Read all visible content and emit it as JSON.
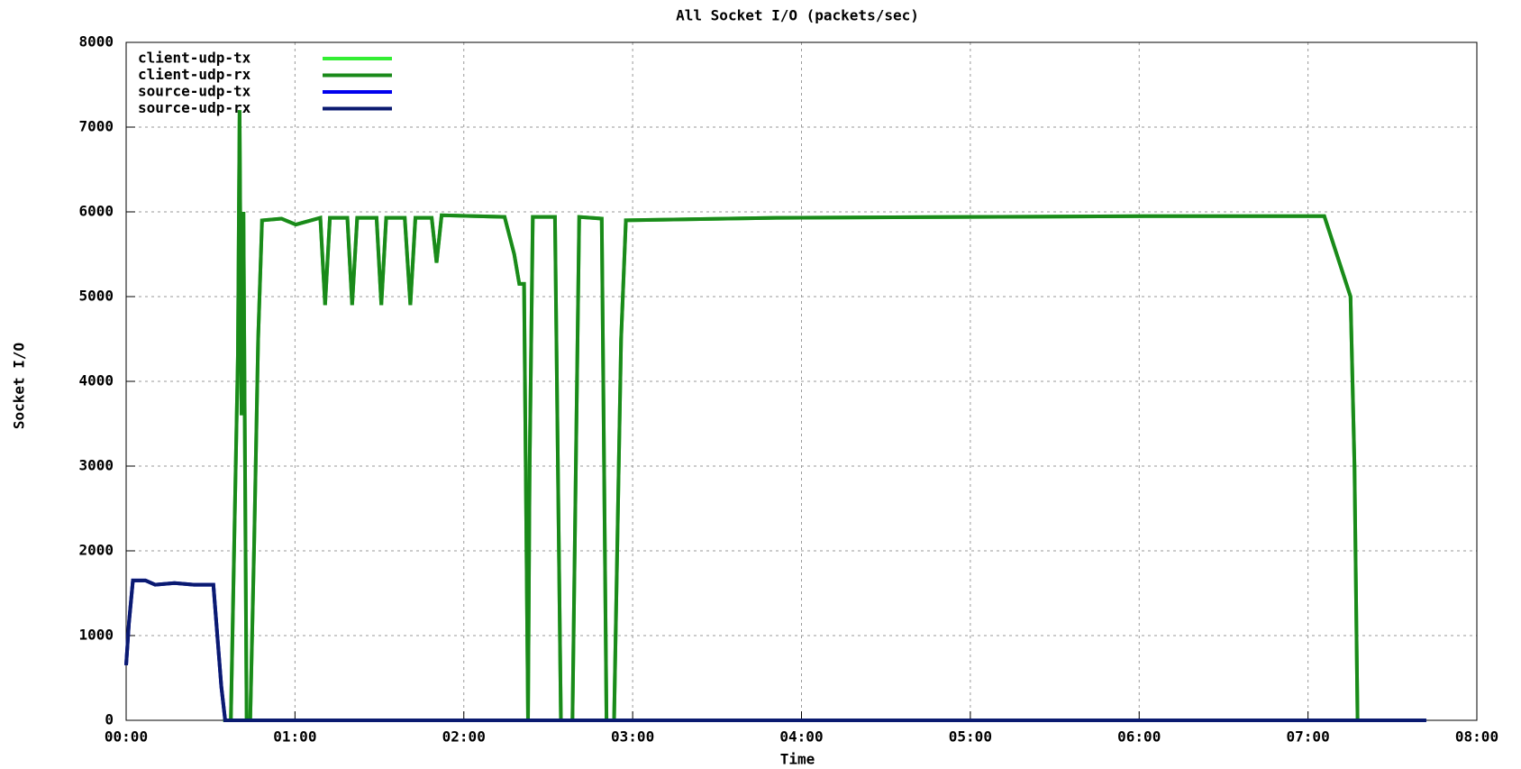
{
  "chart_data": {
    "type": "line",
    "title": "All Socket I/O (packets/sec)",
    "xlabel": "Time",
    "ylabel": "Socket I/O",
    "xlim": [
      0,
      480
    ],
    "xticks": [
      {
        "value": 0,
        "label": "00:00"
      },
      {
        "value": 60,
        "label": "01:00"
      },
      {
        "value": 120,
        "label": "02:00"
      },
      {
        "value": 180,
        "label": "03:00"
      },
      {
        "value": 240,
        "label": "04:00"
      },
      {
        "value": 300,
        "label": "05:00"
      },
      {
        "value": 360,
        "label": "06:00"
      },
      {
        "value": 420,
        "label": "07:00"
      },
      {
        "value": 480,
        "label": "08:00"
      }
    ],
    "ylim": [
      0,
      8000
    ],
    "yticks": [
      0,
      1000,
      2000,
      3000,
      4000,
      5000,
      6000,
      7000,
      8000
    ],
    "grid": true,
    "legend": "top-left",
    "series": [
      {
        "name": "client-udp-tx",
        "color": "#33ee33",
        "x": [
          34.5,
          37.2,
          38.6,
          39.7,
          40.3,
          41.0,
          41.7,
          42.8,
          44.1,
          45.5,
          46.9,
          48.3,
          55.2,
          60.3,
          69.0,
          70.7,
          72.4,
          78.6,
          80.3,
          82.1,
          89.0,
          90.7,
          92.4,
          99.0,
          101.0,
          102.8,
          108.6,
          110.3,
          112.1,
          134.5,
          137.9,
          139.7,
          141.4,
          142.8,
          143.4,
          144.5,
          152.4,
          154.5,
          158.6,
          161.0,
          169.0,
          170.7,
          173.4,
          175.9,
          177.6,
          231,
          300,
          369,
          425.8,
          435.1,
          436.5,
          437.6,
          462
        ],
        "values": [
          0,
          0,
          2400,
          4300,
          7200,
          3600,
          6000,
          0,
          0,
          2100,
          4500,
          5900,
          5920,
          5850,
          5930,
          4900,
          5930,
          5930,
          4900,
          5930,
          5930,
          4900,
          5930,
          5930,
          4900,
          5930,
          5930,
          5400,
          5960,
          5940,
          5500,
          5150,
          5150,
          0,
          3000,
          5940,
          5940,
          0,
          0,
          5940,
          5920,
          0,
          0,
          4500,
          5900,
          5930,
          5940,
          5950,
          5950,
          5000,
          3000,
          0,
          0
        ]
      },
      {
        "name": "client-udp-rx",
        "color": "#1a8a1a",
        "x": [
          34.5,
          37.2,
          38.6,
          39.7,
          40.3,
          41.0,
          41.7,
          42.8,
          44.1,
          45.5,
          46.9,
          48.3,
          55.2,
          60.3,
          69.0,
          70.7,
          72.4,
          78.6,
          80.3,
          82.1,
          89.0,
          90.7,
          92.4,
          99.0,
          101.0,
          102.8,
          108.6,
          110.3,
          112.1,
          134.5,
          137.9,
          139.7,
          141.4,
          142.8,
          143.4,
          144.5,
          152.4,
          154.5,
          158.6,
          161.0,
          169.0,
          170.7,
          173.4,
          175.9,
          177.6,
          231,
          300,
          369,
          425.8,
          435.1,
          436.5,
          437.6,
          462
        ],
        "values": [
          0,
          0,
          2400,
          4300,
          7200,
          3600,
          6000,
          0,
          0,
          2100,
          4500,
          5900,
          5920,
          5850,
          5930,
          4900,
          5930,
          5930,
          4900,
          5930,
          5930,
          4900,
          5930,
          5930,
          4900,
          5930,
          5930,
          5400,
          5960,
          5940,
          5500,
          5150,
          5150,
          0,
          3000,
          5940,
          5940,
          0,
          0,
          5940,
          5920,
          0,
          0,
          4500,
          5900,
          5930,
          5940,
          5950,
          5950,
          5000,
          3000,
          0,
          0
        ]
      },
      {
        "name": "source-udp-tx",
        "color": "#0000ee",
        "x": [
          0,
          1.0,
          2.4,
          6.9,
          10.3,
          17.2,
          24.1,
          31.0,
          32.4,
          33.8,
          35.2,
          462
        ],
        "values": [
          650,
          1150,
          1650,
          1650,
          1600,
          1620,
          1600,
          1600,
          1000,
          400,
          0,
          0
        ]
      },
      {
        "name": "source-udp-rx",
        "color": "#0a1a70",
        "x": [
          0,
          1.0,
          2.4,
          6.9,
          10.3,
          17.2,
          24.1,
          31.0,
          32.4,
          33.8,
          35.2,
          462
        ],
        "values": [
          650,
          1150,
          1650,
          1650,
          1600,
          1620,
          1600,
          1600,
          1000,
          400,
          0,
          0
        ]
      }
    ]
  }
}
